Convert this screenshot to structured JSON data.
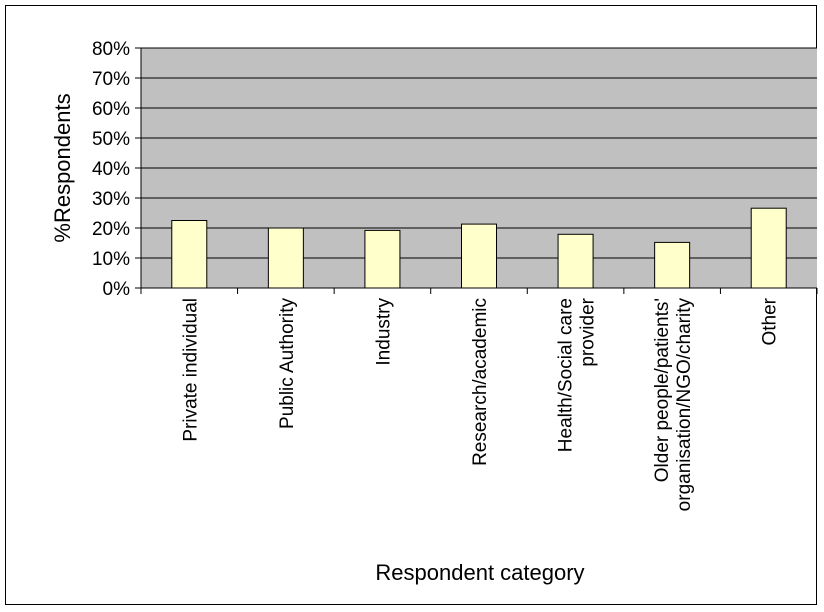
{
  "chart_data": {
    "type": "bar",
    "title": "",
    "xlabel": "Respondent category",
    "ylabel": "%Respondents",
    "ylim": [
      0,
      80
    ],
    "y_ticks": [
      "0%",
      "10%",
      "20%",
      "30%",
      "40%",
      "50%",
      "60%",
      "70%",
      "80%"
    ],
    "grid": true,
    "legend": "none",
    "categories": [
      [
        "Private individual"
      ],
      [
        "Public Authority"
      ],
      [
        "Industry"
      ],
      [
        "Research/academic"
      ],
      [
        "Health/Social care",
        "provider"
      ],
      [
        "Older people/patients'",
        "organisation/NGO/charity"
      ],
      [
        "Other"
      ]
    ],
    "values": [
      22.5,
      20,
      19.2,
      21.3,
      17.9,
      15.2,
      26.6
    ],
    "colors": {
      "plot_bg": "#c0c0c0",
      "bar_fill": "#ffffcc",
      "bar_stroke": "#000000",
      "grid": "#000000"
    }
  }
}
